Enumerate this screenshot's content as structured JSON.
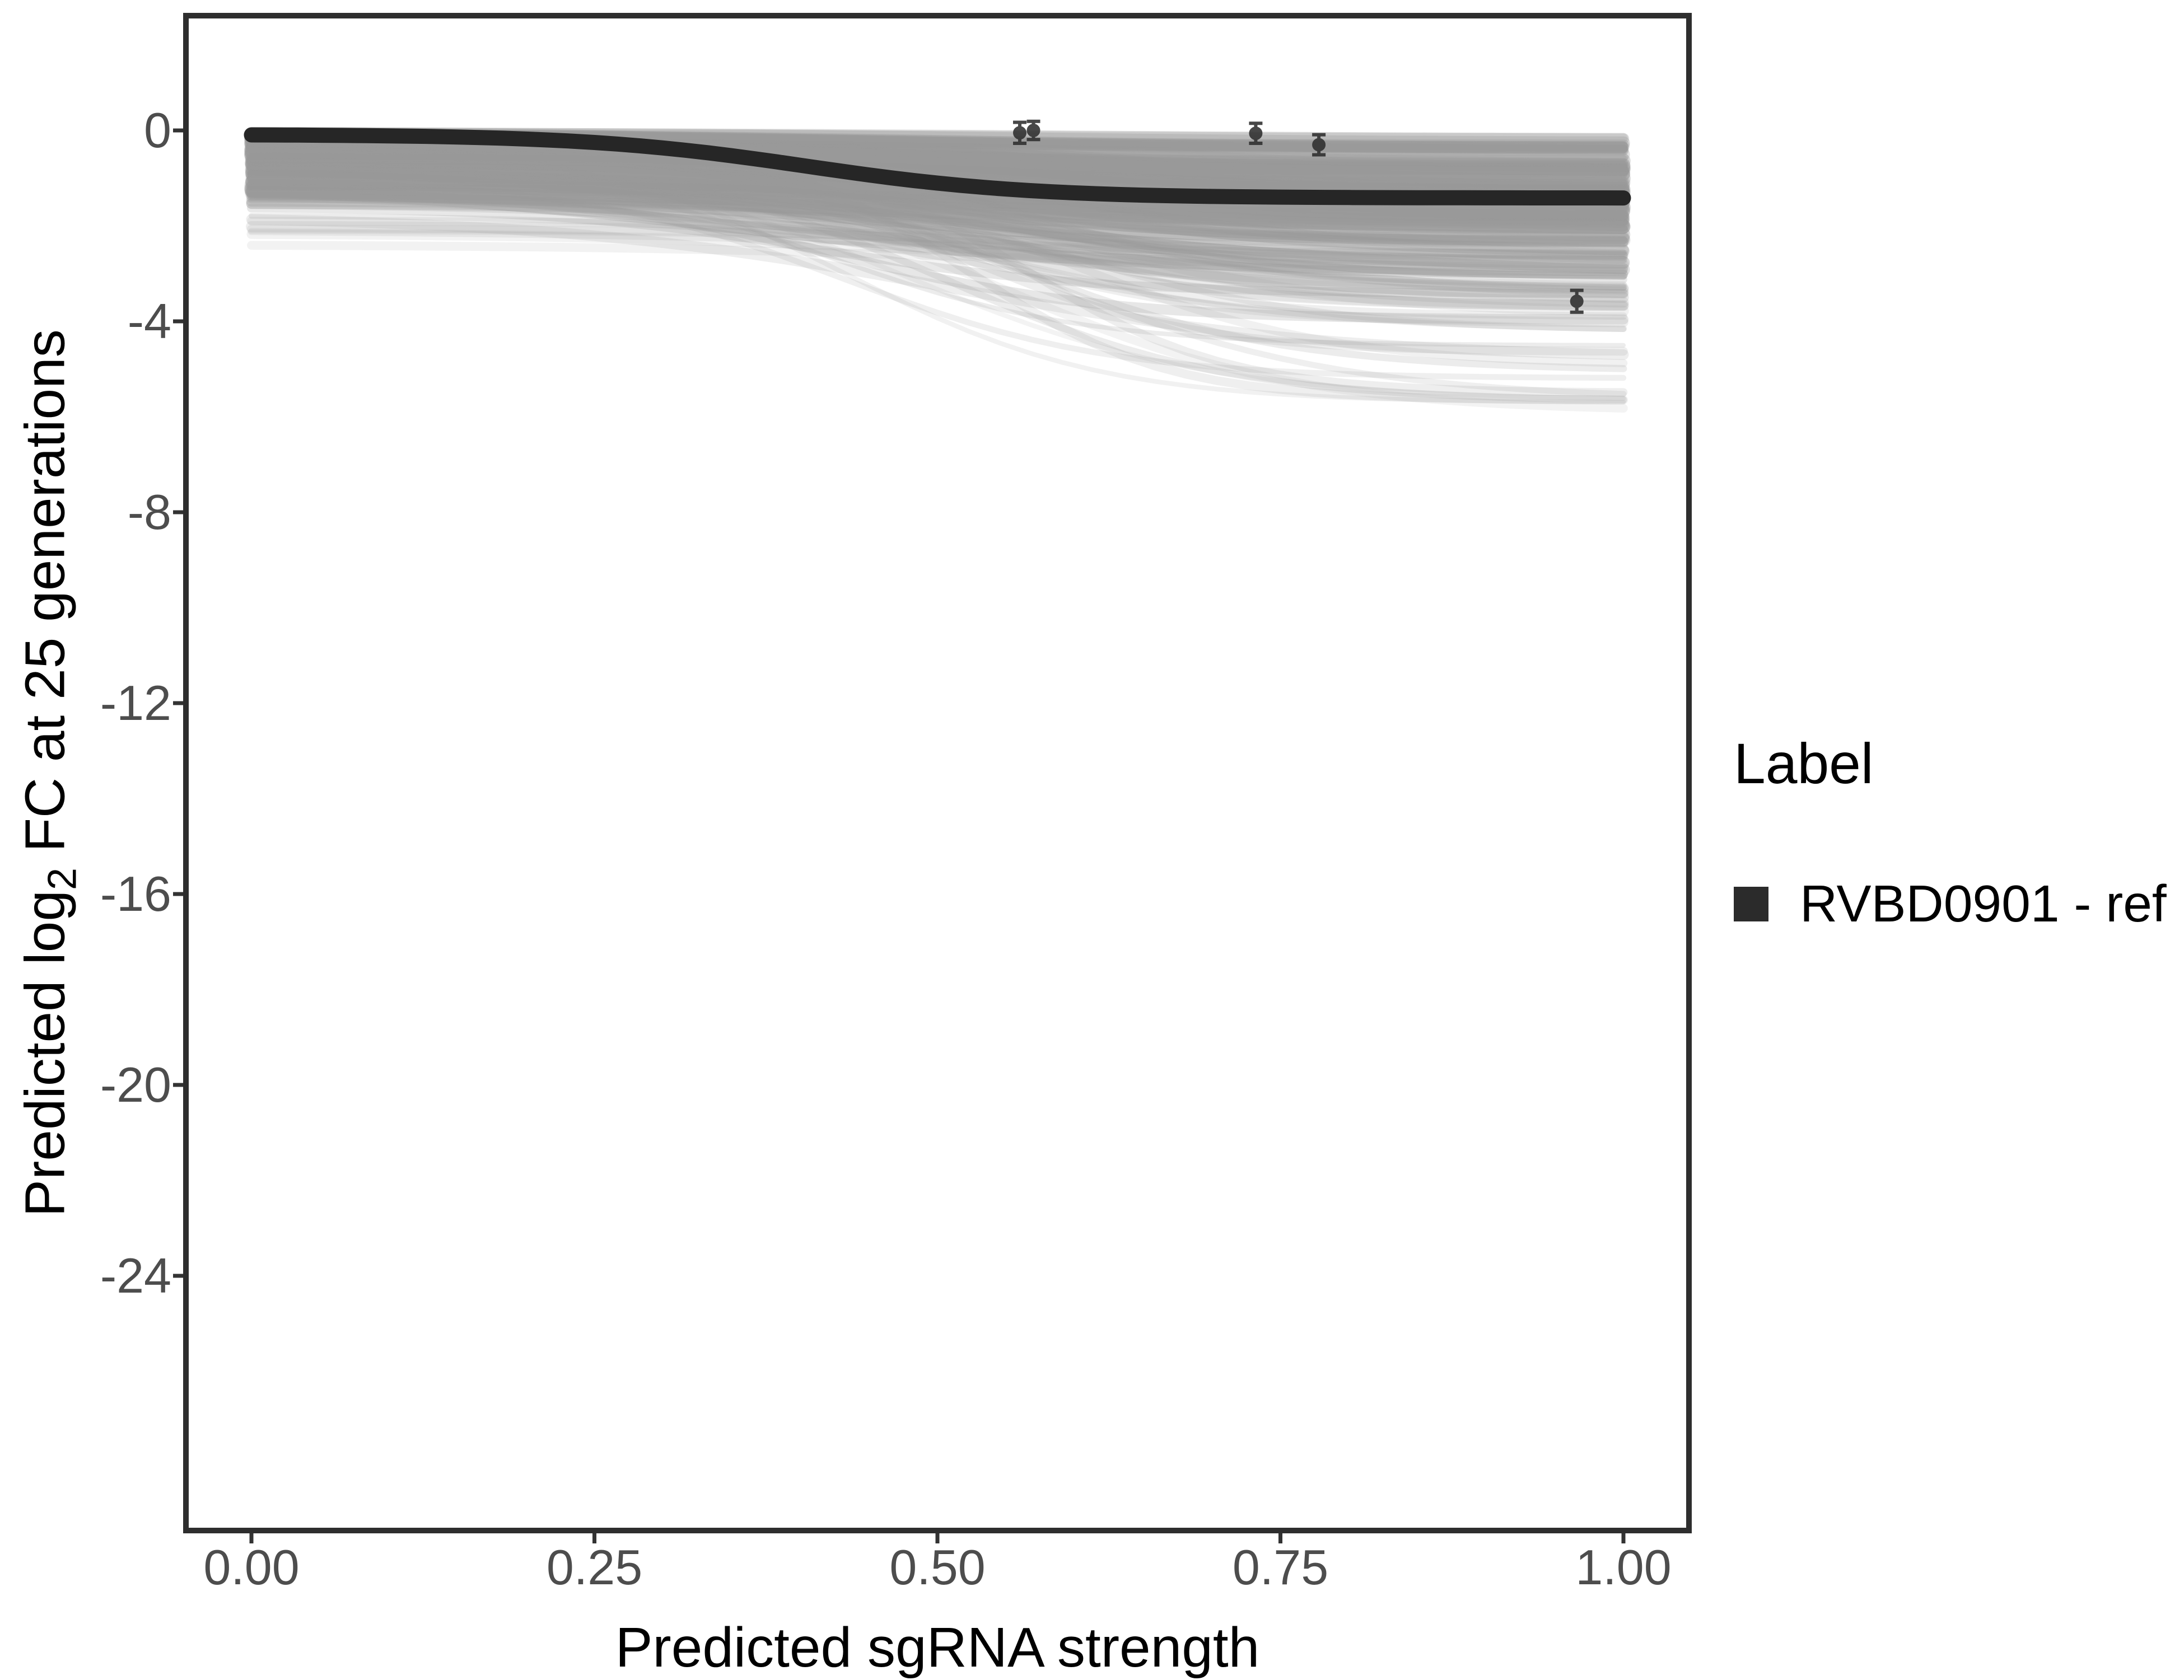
{
  "chart_data": {
    "type": "line",
    "title": "",
    "xlabel": "Predicted sgRNA strength",
    "ylabel": {
      "prefix": "Predicted log",
      "sub": "2",
      "suffix": " FC at 25 generations"
    },
    "x_axis": {
      "lim": [
        -0.046,
        1.046
      ],
      "ticks": [
        {
          "value": 0.0,
          "label": "0.00"
        },
        {
          "value": 0.25,
          "label": "0.25"
        },
        {
          "value": 0.5,
          "label": "0.50"
        },
        {
          "value": 0.75,
          "label": "0.75"
        },
        {
          "value": 1.0,
          "label": "1.00"
        }
      ]
    },
    "y_axis": {
      "lim": [
        -29.4,
        2.35
      ],
      "ticks": [
        {
          "value": 0,
          "label": "0"
        },
        {
          "value": -4,
          "label": "-4"
        },
        {
          "value": -8,
          "label": "-8"
        },
        {
          "value": -12,
          "label": "-12"
        },
        {
          "value": -16,
          "label": "-16"
        },
        {
          "value": -20,
          "label": "-20"
        },
        {
          "value": -24,
          "label": "-24"
        }
      ]
    },
    "grid": "off",
    "legend": {
      "title": "Label",
      "position": "right",
      "items": [
        {
          "label": "RVBD0901 - ref",
          "swatch_color": "#2b2b2b"
        }
      ]
    },
    "reference_curve": {
      "name": "RVBD0901 - ref",
      "color": "#262626",
      "stroke_width": 27,
      "model": "logistic",
      "base": -0.085,
      "drop": 1.33,
      "midpoint": 0.405,
      "steepness": 12.5
    },
    "observed_points": [
      {
        "x": 0.56,
        "y": -0.05,
        "se": 0.22
      },
      {
        "x": 0.57,
        "y": 0.0,
        "se": 0.19
      },
      {
        "x": 0.732,
        "y": -0.06,
        "se": 0.21
      },
      {
        "x": 0.778,
        "y": -0.3,
        "se": 0.21
      },
      {
        "x": 0.966,
        "y": -3.58,
        "se": 0.23
      }
    ],
    "point_style": {
      "color": "#2e2e2e",
      "radius": 9,
      "cap_half_width": 12,
      "stroke_width": 6,
      "opacity": 0.88
    },
    "ensemble": {
      "description": "background posterior sgRNA dose-response curves",
      "seed": 20240613,
      "color": "#9a9a9a",
      "samples_per_curve": 44,
      "groups": [
        {
          "n": 150,
          "b0": [
            0.06,
            1.3
          ],
          "b0_pow": 1.7,
          "drop": [
            0.25,
            1.9
          ],
          "drop_pow": 1.5,
          "mid": [
            0.33,
            0.68
          ],
          "k": [
            4.5,
            11.0
          ],
          "alpha": [
            0.2,
            0.38
          ],
          "w": [
            12,
            26
          ]
        },
        {
          "n": 30,
          "b0": [
            0.3,
            1.8
          ],
          "b0_pow": 1.0,
          "drop": [
            1.8,
            3.1
          ],
          "drop_pow": 1.0,
          "mid": [
            0.4,
            0.66
          ],
          "k": [
            6.0,
            12.0
          ],
          "alpha": [
            0.14,
            0.24
          ],
          "w": [
            10,
            20
          ]
        },
        {
          "n": 12,
          "b0": [
            0.15,
            1.1
          ],
          "b0_pow": 1.0,
          "drop": [
            3.4,
            5.5
          ],
          "drop_pow": 1.0,
          "mid": [
            0.38,
            0.6
          ],
          "k": [
            8.5,
            14.0
          ],
          "alpha": [
            0.12,
            0.2
          ],
          "w": [
            8,
            16
          ]
        },
        {
          "n": 10,
          "b0": [
            0.04,
            0.14
          ],
          "b0_pow": 1.0,
          "drop": [
            0.05,
            0.35
          ],
          "drop_pow": 1.0,
          "mid": [
            0.4,
            0.62
          ],
          "k": [
            5.0,
            9.0
          ],
          "alpha": [
            0.26,
            0.42
          ],
          "w": [
            14,
            24
          ]
        },
        {
          "n": 6,
          "b0": [
            1.85,
            2.45
          ],
          "b0_pow": 1.0,
          "drop": [
            0.35,
            0.95
          ],
          "drop_pow": 1.0,
          "mid": [
            0.45,
            0.65
          ],
          "k": [
            5.0,
            8.0
          ],
          "alpha": [
            0.12,
            0.18
          ],
          "w": [
            12,
            20
          ]
        }
      ]
    },
    "colors": {
      "panel_border": "#2e2e2e",
      "tick_mark": "#333333",
      "tick_label": "#4d4d4d",
      "axis_title": "#000000",
      "ensemble_band": "#9a9a9a",
      "background": "#ffffff"
    }
  }
}
